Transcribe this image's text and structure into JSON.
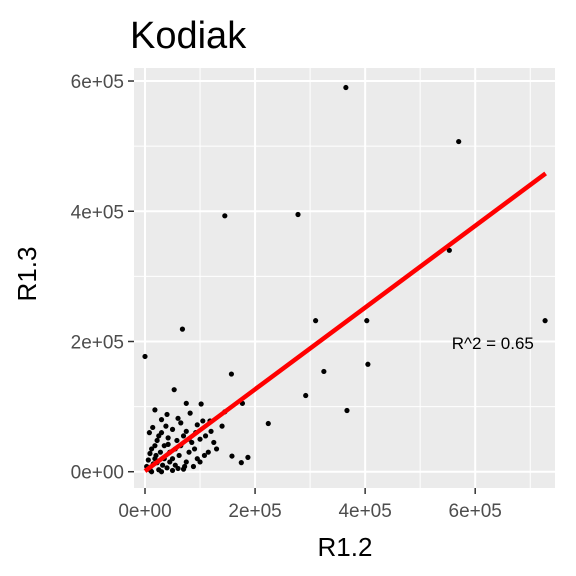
{
  "chart_data": {
    "type": "scatter",
    "title": "Kodiak",
    "xlabel": "R1.2",
    "ylabel": "R1.3",
    "xlim": [
      -20000,
      745000
    ],
    "ylim": [
      -25000,
      620000
    ],
    "x_ticks": [
      0,
      200000,
      400000,
      600000
    ],
    "x_tick_labels": [
      "0e+00",
      "2e+05",
      "4e+05",
      "6e+05"
    ],
    "y_ticks": [
      0,
      200000,
      400000,
      600000
    ],
    "y_tick_labels": [
      "0e+00",
      "2e+05",
      "4e+05",
      "6e+05"
    ],
    "grid": true,
    "background": "#ebebeb",
    "point_color": "#000000",
    "fit_line": {
      "color": "#ff0000",
      "x": [
        0,
        728000
      ],
      "y": [
        1000,
        458000
      ]
    },
    "annotation": {
      "text": "R^2 = 0.65",
      "x": 632000,
      "y": 198000
    },
    "points": [
      [
        365000,
        590000
      ],
      [
        570000,
        507000
      ],
      [
        278000,
        395000
      ],
      [
        145000,
        393000
      ],
      [
        553000,
        340000
      ],
      [
        727000,
        232000
      ],
      [
        310000,
        232000
      ],
      [
        403000,
        232000
      ],
      [
        68000,
        219000
      ],
      [
        0,
        177000
      ],
      [
        405000,
        165000
      ],
      [
        325000,
        154000
      ],
      [
        157000,
        150000
      ],
      [
        53000,
        126000
      ],
      [
        292000,
        117000
      ],
      [
        177000,
        105000
      ],
      [
        367000,
        94000
      ],
      [
        224000,
        74000
      ],
      [
        18000,
        95000
      ],
      [
        75000,
        105000
      ],
      [
        102000,
        104000
      ],
      [
        82000,
        90000
      ],
      [
        145000,
        92000
      ],
      [
        118000,
        78000
      ],
      [
        158000,
        24000
      ],
      [
        187000,
        22000
      ],
      [
        175000,
        14000
      ],
      [
        120000,
        62000
      ],
      [
        140000,
        70000
      ],
      [
        95000,
        72000
      ],
      [
        105000,
        78000
      ],
      [
        60000,
        82000
      ],
      [
        40000,
        88000
      ],
      [
        30000,
        80000
      ],
      [
        50000,
        65000
      ],
      [
        70000,
        55000
      ],
      [
        85000,
        45000
      ],
      [
        115000,
        30000
      ],
      [
        95000,
        20000
      ],
      [
        75000,
        15000
      ],
      [
        55000,
        10000
      ],
      [
        40000,
        6000
      ],
      [
        25000,
        3000
      ],
      [
        10000,
        2000
      ],
      [
        5000,
        5000
      ],
      [
        15000,
        12000
      ],
      [
        20000,
        25000
      ],
      [
        12000,
        35000
      ],
      [
        22000,
        48000
      ],
      [
        8000,
        60000
      ],
      [
        30000,
        60000
      ],
      [
        35000,
        40000
      ],
      [
        45000,
        30000
      ],
      [
        50000,
        20000
      ],
      [
        62000,
        25000
      ],
      [
        65000,
        40000
      ],
      [
        80000,
        30000
      ],
      [
        90000,
        35000
      ],
      [
        100000,
        50000
      ],
      [
        110000,
        55000
      ],
      [
        125000,
        45000
      ],
      [
        130000,
        35000
      ],
      [
        108000,
        25000
      ],
      [
        100000,
        15000
      ],
      [
        72000,
        8000
      ],
      [
        60000,
        5000
      ],
      [
        45000,
        15000
      ],
      [
        35000,
        20000
      ],
      [
        28000,
        30000
      ],
      [
        18000,
        40000
      ],
      [
        6000,
        18000
      ],
      [
        3000,
        8000
      ],
      [
        12000,
        0
      ],
      [
        30000,
        0
      ],
      [
        50000,
        2000
      ],
      [
        70000,
        4000
      ],
      [
        88000,
        8000
      ],
      [
        25000,
        55000
      ],
      [
        42000,
        52000
      ],
      [
        58000,
        48000
      ],
      [
        75000,
        62000
      ],
      [
        92000,
        60000
      ],
      [
        14000,
        68000
      ],
      [
        38000,
        70000
      ],
      [
        65000,
        75000
      ],
      [
        22000,
        14000
      ],
      [
        32000,
        10000
      ],
      [
        42000,
        42000
      ],
      [
        55000,
        35000
      ],
      [
        80000,
        50000
      ],
      [
        18000,
        20000
      ],
      [
        9000,
        28000
      ]
    ]
  }
}
